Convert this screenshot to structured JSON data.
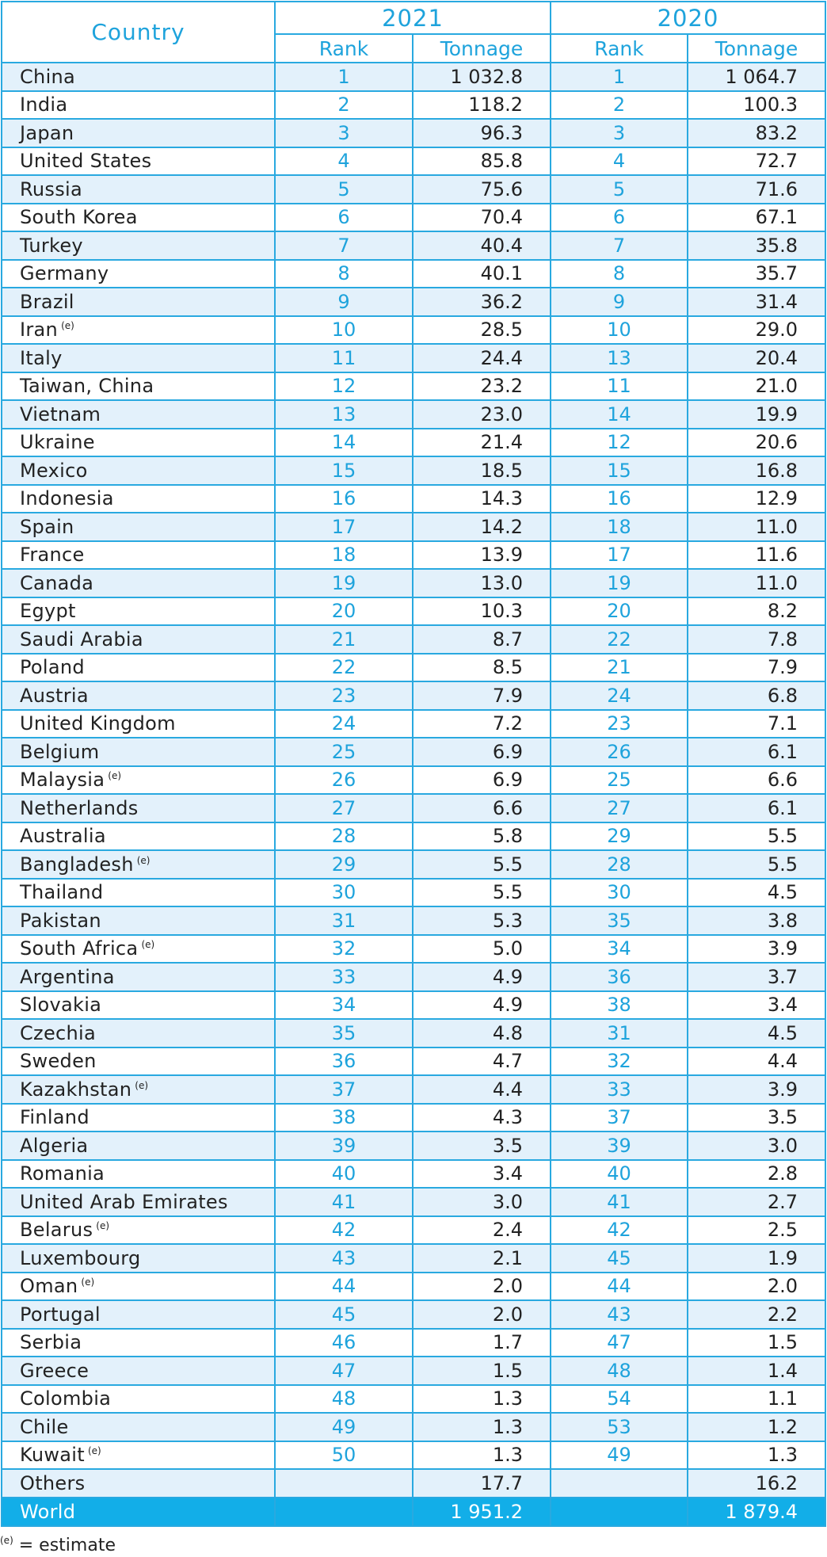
{
  "chart_data": {
    "type": "table",
    "headers": {
      "country": "Country",
      "years": [
        "2021",
        "2020"
      ],
      "rank": "Rank",
      "tonnage": "Tonnage"
    },
    "rows": [
      {
        "country": "China",
        "est": "",
        "rank_2021": "1",
        "ton_2021": "1 032.8",
        "rank_2020": "1",
        "ton_2020": "1 064.7"
      },
      {
        "country": "India",
        "est": "",
        "rank_2021": "2",
        "ton_2021": "118.2",
        "rank_2020": "2",
        "ton_2020": "100.3"
      },
      {
        "country": "Japan",
        "est": "",
        "rank_2021": "3",
        "ton_2021": "96.3",
        "rank_2020": "3",
        "ton_2020": "83.2"
      },
      {
        "country": "United States",
        "est": "",
        "rank_2021": "4",
        "ton_2021": "85.8",
        "rank_2020": "4",
        "ton_2020": "72.7"
      },
      {
        "country": "Russia",
        "est": "",
        "rank_2021": "5",
        "ton_2021": "75.6",
        "rank_2020": "5",
        "ton_2020": "71.6"
      },
      {
        "country": "South Korea",
        "est": "",
        "rank_2021": "6",
        "ton_2021": "70.4",
        "rank_2020": "6",
        "ton_2020": "67.1"
      },
      {
        "country": "Turkey",
        "est": "",
        "rank_2021": "7",
        "ton_2021": "40.4",
        "rank_2020": "7",
        "ton_2020": "35.8"
      },
      {
        "country": "Germany",
        "est": "",
        "rank_2021": "8",
        "ton_2021": "40.1",
        "rank_2020": "8",
        "ton_2020": "35.7"
      },
      {
        "country": "Brazil",
        "est": "",
        "rank_2021": "9",
        "ton_2021": "36.2",
        "rank_2020": "9",
        "ton_2020": "31.4"
      },
      {
        "country": "Iran",
        "est": "(e)",
        "rank_2021": "10",
        "ton_2021": "28.5",
        "rank_2020": "10",
        "ton_2020": "29.0"
      },
      {
        "country": "Italy",
        "est": "",
        "rank_2021": "11",
        "ton_2021": "24.4",
        "rank_2020": "13",
        "ton_2020": "20.4"
      },
      {
        "country": "Taiwan, China",
        "est": "",
        "rank_2021": "12",
        "ton_2021": "23.2",
        "rank_2020": "11",
        "ton_2020": "21.0"
      },
      {
        "country": "Vietnam",
        "est": "",
        "rank_2021": "13",
        "ton_2021": "23.0",
        "rank_2020": "14",
        "ton_2020": "19.9"
      },
      {
        "country": "Ukraine",
        "est": "",
        "rank_2021": "14",
        "ton_2021": "21.4",
        "rank_2020": "12",
        "ton_2020": "20.6"
      },
      {
        "country": "Mexico",
        "est": "",
        "rank_2021": "15",
        "ton_2021": "18.5",
        "rank_2020": "15",
        "ton_2020": "16.8"
      },
      {
        "country": "Indonesia",
        "est": "",
        "rank_2021": "16",
        "ton_2021": "14.3",
        "rank_2020": "16",
        "ton_2020": "12.9"
      },
      {
        "country": "Spain",
        "est": "",
        "rank_2021": "17",
        "ton_2021": "14.2",
        "rank_2020": "18",
        "ton_2020": "11.0"
      },
      {
        "country": "France",
        "est": "",
        "rank_2021": "18",
        "ton_2021": "13.9",
        "rank_2020": "17",
        "ton_2020": "11.6"
      },
      {
        "country": "Canada",
        "est": "",
        "rank_2021": "19",
        "ton_2021": "13.0",
        "rank_2020": "19",
        "ton_2020": "11.0"
      },
      {
        "country": "Egypt",
        "est": "",
        "rank_2021": "20",
        "ton_2021": "10.3",
        "rank_2020": "20",
        "ton_2020": "8.2"
      },
      {
        "country": "Saudi Arabia",
        "est": "",
        "rank_2021": "21",
        "ton_2021": "8.7",
        "rank_2020": "22",
        "ton_2020": "7.8"
      },
      {
        "country": "Poland",
        "est": "",
        "rank_2021": "22",
        "ton_2021": "8.5",
        "rank_2020": "21",
        "ton_2020": "7.9"
      },
      {
        "country": "Austria",
        "est": "",
        "rank_2021": "23",
        "ton_2021": "7.9",
        "rank_2020": "24",
        "ton_2020": "6.8"
      },
      {
        "country": "United Kingdom",
        "est": "",
        "rank_2021": "24",
        "ton_2021": "7.2",
        "rank_2020": "23",
        "ton_2020": "7.1"
      },
      {
        "country": "Belgium",
        "est": "",
        "rank_2021": "25",
        "ton_2021": "6.9",
        "rank_2020": "26",
        "ton_2020": "6.1"
      },
      {
        "country": "Malaysia",
        "est": "(e)",
        "rank_2021": "26",
        "ton_2021": "6.9",
        "rank_2020": "25",
        "ton_2020": "6.6"
      },
      {
        "country": "Netherlands",
        "est": "",
        "rank_2021": "27",
        "ton_2021": "6.6",
        "rank_2020": "27",
        "ton_2020": "6.1"
      },
      {
        "country": "Australia",
        "est": "",
        "rank_2021": "28",
        "ton_2021": "5.8",
        "rank_2020": "29",
        "ton_2020": "5.5"
      },
      {
        "country": "Bangladesh",
        "est": "(e)",
        "rank_2021": "29",
        "ton_2021": "5.5",
        "rank_2020": "28",
        "ton_2020": "5.5"
      },
      {
        "country": "Thailand",
        "est": "",
        "rank_2021": "30",
        "ton_2021": "5.5",
        "rank_2020": "30",
        "ton_2020": "4.5"
      },
      {
        "country": "Pakistan",
        "est": "",
        "rank_2021": "31",
        "ton_2021": "5.3",
        "rank_2020": "35",
        "ton_2020": "3.8"
      },
      {
        "country": "South Africa",
        "est": "(e)",
        "rank_2021": "32",
        "ton_2021": "5.0",
        "rank_2020": "34",
        "ton_2020": "3.9"
      },
      {
        "country": "Argentina",
        "est": "",
        "rank_2021": "33",
        "ton_2021": "4.9",
        "rank_2020": "36",
        "ton_2020": "3.7"
      },
      {
        "country": "Slovakia",
        "est": "",
        "rank_2021": "34",
        "ton_2021": "4.9",
        "rank_2020": "38",
        "ton_2020": "3.4"
      },
      {
        "country": "Czechia",
        "est": "",
        "rank_2021": "35",
        "ton_2021": "4.8",
        "rank_2020": "31",
        "ton_2020": "4.5"
      },
      {
        "country": "Sweden",
        "est": "",
        "rank_2021": "36",
        "ton_2021": "4.7",
        "rank_2020": "32",
        "ton_2020": "4.4"
      },
      {
        "country": "Kazakhstan",
        "est": "(e)",
        "rank_2021": "37",
        "ton_2021": "4.4",
        "rank_2020": "33",
        "ton_2020": "3.9"
      },
      {
        "country": "Finland",
        "est": "",
        "rank_2021": "38",
        "ton_2021": "4.3",
        "rank_2020": "37",
        "ton_2020": "3.5"
      },
      {
        "country": "Algeria",
        "est": "",
        "rank_2021": "39",
        "ton_2021": "3.5",
        "rank_2020": "39",
        "ton_2020": "3.0"
      },
      {
        "country": "Romania",
        "est": "",
        "rank_2021": "40",
        "ton_2021": "3.4",
        "rank_2020": "40",
        "ton_2020": "2.8"
      },
      {
        "country": "United Arab Emirates",
        "est": "",
        "rank_2021": "41",
        "ton_2021": "3.0",
        "rank_2020": "41",
        "ton_2020": "2.7"
      },
      {
        "country": "Belarus",
        "est": "(e)",
        "rank_2021": "42",
        "ton_2021": "2.4",
        "rank_2020": "42",
        "ton_2020": "2.5"
      },
      {
        "country": "Luxembourg",
        "est": "",
        "rank_2021": "43",
        "ton_2021": "2.1",
        "rank_2020": "45",
        "ton_2020": "1.9"
      },
      {
        "country": "Oman",
        "est": "(e)",
        "rank_2021": "44",
        "ton_2021": "2.0",
        "rank_2020": "44",
        "ton_2020": "2.0"
      },
      {
        "country": "Portugal",
        "est": "",
        "rank_2021": "45",
        "ton_2021": "2.0",
        "rank_2020": "43",
        "ton_2020": "2.2"
      },
      {
        "country": "Serbia",
        "est": "",
        "rank_2021": "46",
        "ton_2021": "1.7",
        "rank_2020": "47",
        "ton_2020": "1.5"
      },
      {
        "country": "Greece",
        "est": "",
        "rank_2021": "47",
        "ton_2021": "1.5",
        "rank_2020": "48",
        "ton_2020": "1.4"
      },
      {
        "country": "Colombia",
        "est": "",
        "rank_2021": "48",
        "ton_2021": "1.3",
        "rank_2020": "54",
        "ton_2020": "1.1"
      },
      {
        "country": "Chile",
        "est": "",
        "rank_2021": "49",
        "ton_2021": "1.3",
        "rank_2020": "53",
        "ton_2020": "1.2"
      },
      {
        "country": "Kuwait",
        "est": "(e)",
        "rank_2021": "50",
        "ton_2021": "1.3",
        "rank_2020": "49",
        "ton_2020": "1.3"
      },
      {
        "country": "Others",
        "est": "",
        "rank_2021": "",
        "ton_2021": "17.7",
        "rank_2020": "",
        "ton_2020": "16.2"
      }
    ],
    "total": {
      "country": "World",
      "ton_2021": "1 951.2",
      "ton_2020": "1 879.4"
    },
    "footnote": {
      "mark": "(e)",
      "text": "= estimate"
    },
    "colors": {
      "accent": "#1ea3dc",
      "border": "#29a9e0",
      "shaded_row": "#e3f1fb",
      "total_row": "#12aee8"
    }
  }
}
